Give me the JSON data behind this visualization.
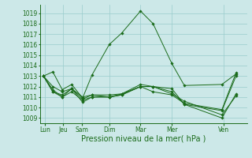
{
  "xlabel": "Pression niveau de la mer( hPa )",
  "background_color": "#cce8e8",
  "grid_color": "#99cccc",
  "line_color": "#1a6b1a",
  "ylim": [
    1008.5,
    1019.8
  ],
  "yticks": [
    1009,
    1010,
    1011,
    1012,
    1013,
    1014,
    1015,
    1016,
    1017,
    1018,
    1019
  ],
  "day_labels": [
    "Lun",
    "Jeu",
    "Sam",
    "Dim",
    "Mar",
    "Mer",
    "Ven"
  ],
  "xlim": [
    -0.1,
    6.5
  ],
  "lines": [
    {
      "x": [
        0.0,
        0.3,
        0.6,
        0.9,
        1.25,
        1.55,
        2.1,
        2.5,
        3.1,
        3.5,
        4.1,
        4.5,
        5.7,
        6.15
      ],
      "y": [
        1013.0,
        1013.4,
        1011.7,
        1012.2,
        1010.9,
        1013.1,
        1016.0,
        1017.1,
        1019.2,
        1018.0,
        1014.2,
        1012.1,
        1012.2,
        1013.2
      ]
    },
    {
      "x": [
        0.0,
        0.3,
        0.6,
        0.9,
        1.25,
        1.55,
        2.1,
        2.5,
        3.1,
        3.5,
        4.1,
        4.5,
        5.7,
        6.15
      ],
      "y": [
        1013.0,
        1011.7,
        1011.0,
        1011.8,
        1010.8,
        1011.2,
        1011.0,
        1011.2,
        1012.0,
        1012.0,
        1011.3,
        1010.6,
        1009.3,
        1011.1
      ]
    },
    {
      "x": [
        0.0,
        0.3,
        0.6,
        0.9,
        1.25,
        1.55,
        2.1,
        2.5,
        3.1,
        3.5,
        4.1,
        4.5,
        5.7,
        6.15
      ],
      "y": [
        1013.0,
        1011.5,
        1011.0,
        1011.5,
        1010.7,
        1011.0,
        1011.0,
        1011.2,
        1012.0,
        1011.5,
        1011.2,
        1010.4,
        1009.8,
        1013.3
      ]
    },
    {
      "x": [
        0.0,
        0.3,
        0.6,
        0.9,
        1.25,
        1.55,
        2.1,
        2.5,
        3.1,
        3.5,
        4.1,
        4.5,
        5.7,
        6.15
      ],
      "y": [
        1013.0,
        1011.5,
        1011.2,
        1011.8,
        1011.0,
        1011.2,
        1011.2,
        1011.3,
        1012.2,
        1012.0,
        1011.8,
        1010.3,
        1009.0,
        1011.3
      ]
    },
    {
      "x": [
        0.0,
        0.3,
        0.6,
        0.9,
        1.25,
        1.55,
        2.1,
        2.5,
        3.1,
        3.5,
        4.1,
        4.5,
        5.7,
        6.15
      ],
      "y": [
        1013.0,
        1012.0,
        1011.5,
        1011.8,
        1010.5,
        1011.0,
        1011.0,
        1011.3,
        1012.0,
        1012.0,
        1011.5,
        1010.3,
        1009.7,
        1013.0
      ]
    }
  ],
  "xtick_positions": [
    0.05,
    0.62,
    1.22,
    2.1,
    3.1,
    4.1,
    5.75
  ],
  "xlabel_fontsize": 7,
  "ytick_fontsize": 5.5,
  "xtick_fontsize": 5.5
}
